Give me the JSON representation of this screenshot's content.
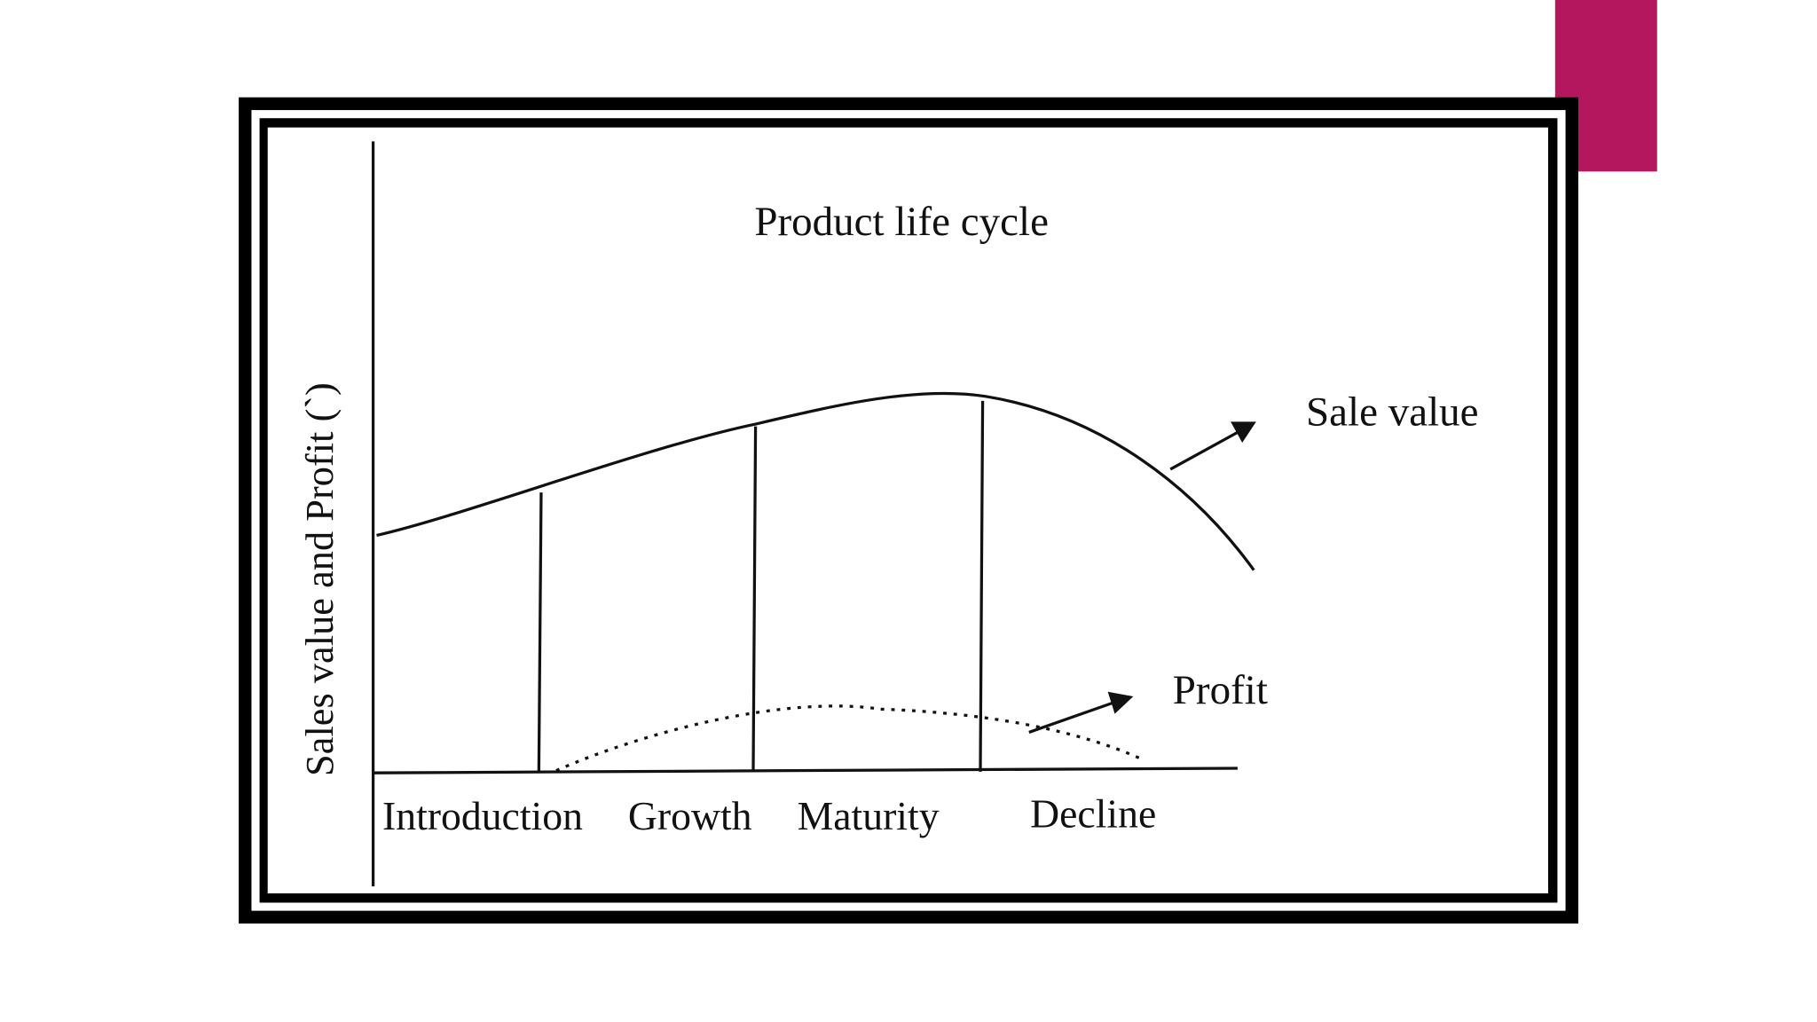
{
  "diagram": {
    "title": "Product life cycle",
    "y_axis_label": "Sales value and Profit (`)",
    "stages": [
      "Introduction",
      "Growth",
      "Maturity",
      "Decline"
    ],
    "curves": [
      "Sale value",
      "Profit"
    ]
  }
}
